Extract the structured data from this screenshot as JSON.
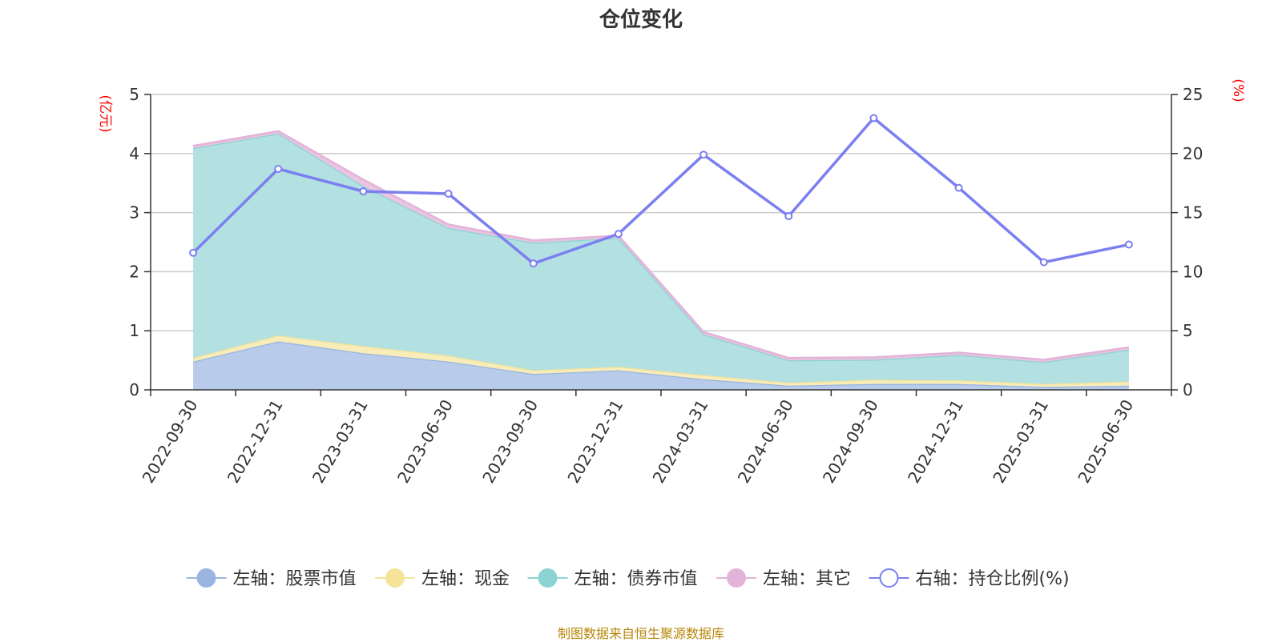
{
  "chart_data": {
    "type": "area",
    "title": "仓位变化",
    "categories": [
      "2022-09-30",
      "2022-12-31",
      "2023-03-31",
      "2023-06-30",
      "2023-09-30",
      "2023-12-31",
      "2024-03-31",
      "2024-06-30",
      "2024-09-30",
      "2024-12-31",
      "2025-03-31",
      "2025-06-30"
    ],
    "left_axis": {
      "unit": "(亿元)",
      "min": 0,
      "max": 5,
      "ticks": [
        "0",
        "1",
        "2",
        "3",
        "4",
        "5"
      ]
    },
    "right_axis": {
      "unit": "(%)",
      "min": 0,
      "max": 25,
      "ticks": [
        "0",
        "5",
        "10",
        "15",
        "20",
        "25"
      ]
    },
    "stacked_series": [
      {
        "name": "左轴：股票市值",
        "axis": "left",
        "color": "#9ab5e0",
        "fill": "#b8cbea",
        "values": [
          0.48,
          0.82,
          0.62,
          0.48,
          0.27,
          0.33,
          0.18,
          0.07,
          0.1,
          0.1,
          0.05,
          0.07
        ]
      },
      {
        "name": "左轴：现金",
        "axis": "left",
        "color": "#f5e39a",
        "fill": "#f8ecb8",
        "values": [
          0.06,
          0.1,
          0.12,
          0.1,
          0.06,
          0.06,
          0.07,
          0.05,
          0.07,
          0.06,
          0.05,
          0.07
        ]
      },
      {
        "name": "左轴：债券市值",
        "axis": "left",
        "color": "#8dd3d3",
        "fill": "#b3e0e0",
        "values": [
          3.55,
          3.42,
          2.71,
          2.16,
          2.16,
          2.18,
          0.69,
          0.38,
          0.34,
          0.43,
          0.37,
          0.54
        ]
      },
      {
        "name": "左轴：其它",
        "axis": "left",
        "color": "#e2b4d8",
        "fill": "#eac4e2",
        "values": [
          0.04,
          0.04,
          0.11,
          0.06,
          0.04,
          0.04,
          0.04,
          0.04,
          0.04,
          0.04,
          0.04,
          0.04
        ]
      }
    ],
    "line_series": {
      "name": "右轴：持仓比例(%)",
      "axis": "right",
      "color": "#7b7ff0",
      "values": [
        11.6,
        18.7,
        16.8,
        16.6,
        10.7,
        13.2,
        19.9,
        14.7,
        23.0,
        17.1,
        10.8,
        12.3
      ]
    },
    "grid": true,
    "legend_position": "bottom"
  },
  "footer": "制图数据来自恒生聚源数据库"
}
